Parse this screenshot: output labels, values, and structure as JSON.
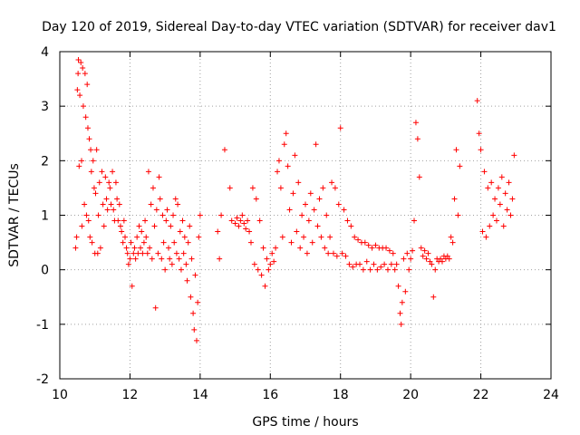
{
  "chart_data": {
    "type": "scatter",
    "title": "Day 120 of 2019, Sidereal Day-to-day VTEC variation (SDTVAR) for receiver dav1",
    "xlabel": "GPS time / hours",
    "ylabel": "SDTVAR / TECUs",
    "xlim": [
      10,
      24
    ],
    "ylim": [
      -2,
      4
    ],
    "xticks": [
      "10",
      "12",
      "14",
      "16",
      "18",
      "20",
      "22",
      "24"
    ],
    "yticks": [
      "-2",
      "-1",
      "0",
      "1",
      "2",
      "3",
      "4"
    ],
    "grid": true,
    "marker": "+",
    "color": "#ff0000",
    "series": [
      {
        "name": "dav1",
        "points": [
          [
            10.45,
            0.4
          ],
          [
            10.48,
            0.6
          ],
          [
            10.5,
            3.3
          ],
          [
            10.52,
            3.6
          ],
          [
            10.53,
            3.85
          ],
          [
            10.55,
            1.9
          ],
          [
            10.57,
            3.2
          ],
          [
            10.6,
            3.8
          ],
          [
            10.62,
            2.0
          ],
          [
            10.63,
            0.8
          ],
          [
            10.65,
            3.7
          ],
          [
            10.67,
            3.0
          ],
          [
            10.7,
            1.2
          ],
          [
            10.72,
            3.6
          ],
          [
            10.74,
            2.8
          ],
          [
            10.76,
            1.0
          ],
          [
            10.78,
            3.4
          ],
          [
            10.8,
            2.6
          ],
          [
            10.82,
            0.9
          ],
          [
            10.84,
            2.4
          ],
          [
            10.86,
            0.6
          ],
          [
            10.88,
            2.2
          ],
          [
            10.9,
            1.8
          ],
          [
            10.92,
            0.5
          ],
          [
            10.95,
            2.0
          ],
          [
            10.98,
            1.5
          ],
          [
            11.0,
            0.3
          ],
          [
            11.02,
            1.4
          ],
          [
            11.05,
            2.2
          ],
          [
            11.08,
            0.3
          ],
          [
            11.1,
            1.0
          ],
          [
            11.13,
            1.6
          ],
          [
            11.16,
            0.4
          ],
          [
            11.2,
            1.8
          ],
          [
            11.23,
            1.2
          ],
          [
            11.26,
            0.8
          ],
          [
            11.3,
            1.7
          ],
          [
            11.33,
            1.3
          ],
          [
            11.36,
            1.1
          ],
          [
            11.4,
            1.6
          ],
          [
            11.43,
            1.5
          ],
          [
            11.46,
            1.2
          ],
          [
            11.5,
            1.8
          ],
          [
            11.53,
            1.1
          ],
          [
            11.56,
            0.9
          ],
          [
            11.6,
            1.6
          ],
          [
            11.63,
            1.3
          ],
          [
            11.66,
            0.9
          ],
          [
            11.7,
            1.2
          ],
          [
            11.73,
            0.8
          ],
          [
            11.76,
            0.7
          ],
          [
            11.8,
            0.5
          ],
          [
            11.83,
            0.9
          ],
          [
            11.86,
            0.6
          ],
          [
            11.9,
            0.4
          ],
          [
            11.93,
            0.3
          ],
          [
            11.96,
            0.1
          ],
          [
            12.0,
            0.2
          ],
          [
            12.03,
            0.5
          ],
          [
            12.06,
            -0.3
          ],
          [
            12.1,
            0.3
          ],
          [
            12.13,
            0.4
          ],
          [
            12.16,
            0.2
          ],
          [
            12.2,
            0.6
          ],
          [
            12.23,
            0.3
          ],
          [
            12.26,
            0.8
          ],
          [
            12.3,
            0.4
          ],
          [
            12.33,
            0.7
          ],
          [
            12.36,
            0.3
          ],
          [
            12.4,
            0.5
          ],
          [
            12.43,
            0.9
          ],
          [
            12.46,
            0.6
          ],
          [
            12.5,
            0.3
          ],
          [
            12.53,
            1.8
          ],
          [
            12.56,
            0.4
          ],
          [
            12.6,
            1.2
          ],
          [
            12.63,
            0.2
          ],
          [
            12.66,
            1.5
          ],
          [
            12.7,
            0.8
          ],
          [
            12.73,
            -0.7
          ],
          [
            12.76,
            1.1
          ],
          [
            12.8,
            0.3
          ],
          [
            12.83,
            1.7
          ],
          [
            12.86,
            1.3
          ],
          [
            12.9,
            0.2
          ],
          [
            12.93,
            1.0
          ],
          [
            12.96,
            0.5
          ],
          [
            13.0,
            0.0
          ],
          [
            13.03,
            0.9
          ],
          [
            13.06,
            1.1
          ],
          [
            13.1,
            0.4
          ],
          [
            13.13,
            0.2
          ],
          [
            13.16,
            0.8
          ],
          [
            13.2,
            0.1
          ],
          [
            13.23,
            1.0
          ],
          [
            13.26,
            0.5
          ],
          [
            13.3,
            1.3
          ],
          [
            13.33,
            0.3
          ],
          [
            13.36,
            1.2
          ],
          [
            13.4,
            0.2
          ],
          [
            13.43,
            0.7
          ],
          [
            13.46,
            0.0
          ],
          [
            13.5,
            0.9
          ],
          [
            13.53,
            0.3
          ],
          [
            13.56,
            0.6
          ],
          [
            13.6,
            0.1
          ],
          [
            13.63,
            -0.2
          ],
          [
            13.66,
            0.5
          ],
          [
            13.7,
            0.8
          ],
          [
            13.73,
            -0.5
          ],
          [
            13.76,
            0.2
          ],
          [
            13.8,
            -0.8
          ],
          [
            13.83,
            -1.1
          ],
          [
            13.86,
            -0.1
          ],
          [
            13.9,
            -1.3
          ],
          [
            13.93,
            -0.6
          ],
          [
            13.96,
            0.6
          ],
          [
            14.0,
            1.0
          ],
          [
            14.5,
            0.7
          ],
          [
            14.55,
            0.2
          ],
          [
            14.6,
            1.0
          ],
          [
            14.7,
            2.2
          ],
          [
            14.85,
            1.5
          ],
          [
            14.9,
            0.9
          ],
          [
            15.0,
            0.85
          ],
          [
            15.05,
            0.95
          ],
          [
            15.1,
            0.8
          ],
          [
            15.15,
            0.9
          ],
          [
            15.2,
            1.0
          ],
          [
            15.25,
            0.85
          ],
          [
            15.3,
            0.75
          ],
          [
            15.35,
            0.9
          ],
          [
            15.4,
            0.7
          ],
          [
            15.45,
            0.5
          ],
          [
            15.5,
            1.5
          ],
          [
            15.55,
            0.1
          ],
          [
            15.6,
            1.3
          ],
          [
            15.65,
            0.0
          ],
          [
            15.7,
            0.9
          ],
          [
            15.75,
            -0.1
          ],
          [
            15.8,
            0.4
          ],
          [
            15.85,
            -0.3
          ],
          [
            15.9,
            0.2
          ],
          [
            15.95,
            0.0
          ],
          [
            16.0,
            0.1
          ],
          [
            16.05,
            0.3
          ],
          [
            16.1,
            0.15
          ],
          [
            16.15,
            0.4
          ],
          [
            16.2,
            1.8
          ],
          [
            16.25,
            2.0
          ],
          [
            16.3,
            1.5
          ],
          [
            16.35,
            0.6
          ],
          [
            16.4,
            2.3
          ],
          [
            16.45,
            2.5
          ],
          [
            16.5,
            1.9
          ],
          [
            16.55,
            1.1
          ],
          [
            16.6,
            0.5
          ],
          [
            16.65,
            1.4
          ],
          [
            16.7,
            2.1
          ],
          [
            16.75,
            0.7
          ],
          [
            16.8,
            1.6
          ],
          [
            16.85,
            0.4
          ],
          [
            16.9,
            1.0
          ],
          [
            16.95,
            0.6
          ],
          [
            17.0,
            1.2
          ],
          [
            17.05,
            0.3
          ],
          [
            17.1,
            0.9
          ],
          [
            17.15,
            1.4
          ],
          [
            17.2,
            0.5
          ],
          [
            17.25,
            1.1
          ],
          [
            17.3,
            2.3
          ],
          [
            17.35,
            0.8
          ],
          [
            17.4,
            1.3
          ],
          [
            17.45,
            0.6
          ],
          [
            17.5,
            1.5
          ],
          [
            17.55,
            0.4
          ],
          [
            17.6,
            1.0
          ],
          [
            17.65,
            0.3
          ],
          [
            17.7,
            0.6
          ],
          [
            17.75,
            1.6
          ],
          [
            17.8,
            0.3
          ],
          [
            17.85,
            1.5
          ],
          [
            17.9,
            0.25
          ],
          [
            17.95,
            1.2
          ],
          [
            18.0,
            2.6
          ],
          [
            18.05,
            0.3
          ],
          [
            18.1,
            1.1
          ],
          [
            18.15,
            0.25
          ],
          [
            18.2,
            0.9
          ],
          [
            18.25,
            0.1
          ],
          [
            18.3,
            0.8
          ],
          [
            18.35,
            0.05
          ],
          [
            18.4,
            0.6
          ],
          [
            18.45,
            0.1
          ],
          [
            18.5,
            0.55
          ],
          [
            18.55,
            0.1
          ],
          [
            18.6,
            0.5
          ],
          [
            18.65,
            0.0
          ],
          [
            18.7,
            0.5
          ],
          [
            18.75,
            0.15
          ],
          [
            18.8,
            0.45
          ],
          [
            18.85,
            0.0
          ],
          [
            18.9,
            0.4
          ],
          [
            18.95,
            0.1
          ],
          [
            19.0,
            0.45
          ],
          [
            19.05,
            0.0
          ],
          [
            19.1,
            0.4
          ],
          [
            19.15,
            0.05
          ],
          [
            19.2,
            0.4
          ],
          [
            19.25,
            0.1
          ],
          [
            19.3,
            0.4
          ],
          [
            19.35,
            0.0
          ],
          [
            19.4,
            0.35
          ],
          [
            19.45,
            0.1
          ],
          [
            19.5,
            0.3
          ],
          [
            19.55,
            0.0
          ],
          [
            19.6,
            0.1
          ],
          [
            19.65,
            -0.3
          ],
          [
            19.7,
            -0.8
          ],
          [
            19.73,
            -1.0
          ],
          [
            19.76,
            -0.6
          ],
          [
            19.8,
            0.2
          ],
          [
            19.85,
            -0.4
          ],
          [
            19.9,
            0.3
          ],
          [
            19.95,
            0.0
          ],
          [
            20.0,
            0.2
          ],
          [
            20.05,
            0.35
          ],
          [
            20.1,
            0.9
          ],
          [
            20.15,
            2.7
          ],
          [
            20.2,
            2.4
          ],
          [
            20.25,
            1.7
          ],
          [
            20.3,
            0.4
          ],
          [
            20.35,
            0.25
          ],
          [
            20.4,
            0.35
          ],
          [
            20.45,
            0.2
          ],
          [
            20.5,
            0.3
          ],
          [
            20.55,
            0.15
          ],
          [
            20.6,
            0.1
          ],
          [
            20.65,
            -0.5
          ],
          [
            20.7,
            0.0
          ],
          [
            20.75,
            0.2
          ],
          [
            20.8,
            0.15
          ],
          [
            20.85,
            0.2
          ],
          [
            20.9,
            0.15
          ],
          [
            20.95,
            0.25
          ],
          [
            21.0,
            0.2
          ],
          [
            21.05,
            0.25
          ],
          [
            21.1,
            0.2
          ],
          [
            21.15,
            0.6
          ],
          [
            21.2,
            0.5
          ],
          [
            21.25,
            1.3
          ],
          [
            21.3,
            2.2
          ],
          [
            21.35,
            1.0
          ],
          [
            21.4,
            1.9
          ],
          [
            21.9,
            3.1
          ],
          [
            21.95,
            2.5
          ],
          [
            22.0,
            2.2
          ],
          [
            22.05,
            0.7
          ],
          [
            22.1,
            1.8
          ],
          [
            22.15,
            0.6
          ],
          [
            22.2,
            1.5
          ],
          [
            22.25,
            0.8
          ],
          [
            22.3,
            1.6
          ],
          [
            22.35,
            1.0
          ],
          [
            22.4,
            1.3
          ],
          [
            22.45,
            0.9
          ],
          [
            22.5,
            1.5
          ],
          [
            22.55,
            1.2
          ],
          [
            22.6,
            1.7
          ],
          [
            22.65,
            0.8
          ],
          [
            22.7,
            1.4
          ],
          [
            22.75,
            1.1
          ],
          [
            22.8,
            1.6
          ],
          [
            22.85,
            1.0
          ],
          [
            22.9,
            1.3
          ],
          [
            22.95,
            2.1
          ]
        ]
      }
    ]
  }
}
